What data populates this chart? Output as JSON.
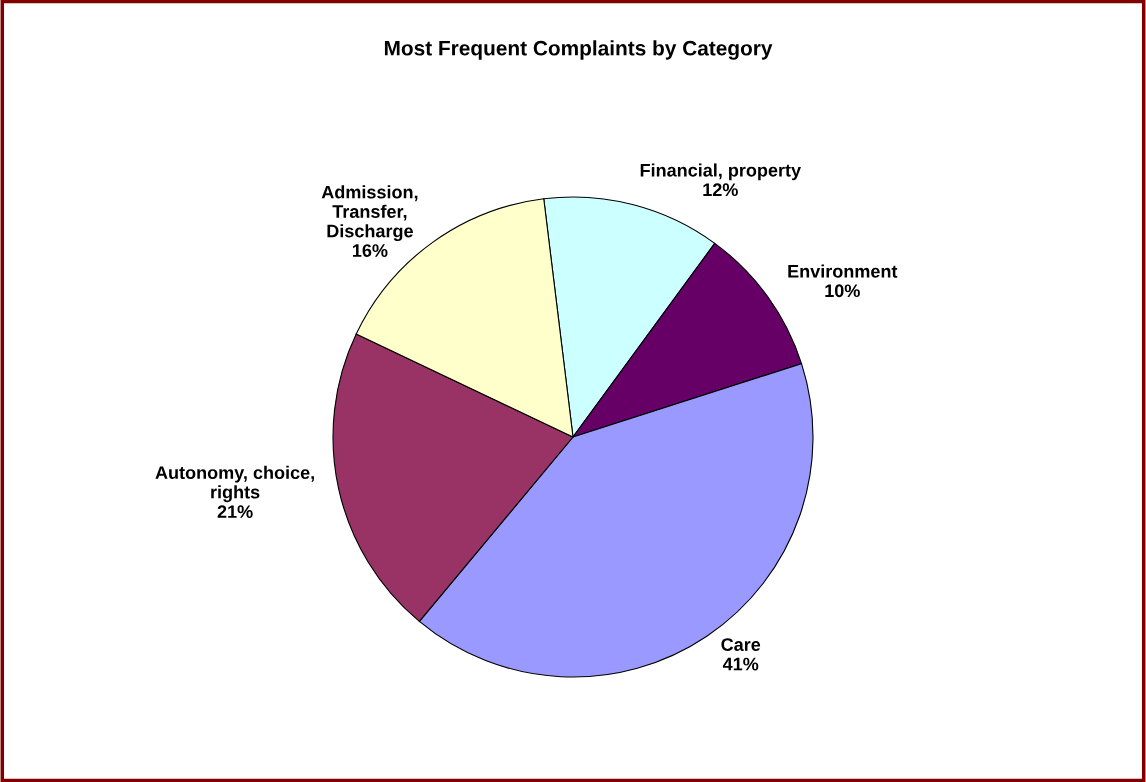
{
  "chart_data": {
    "type": "pie",
    "title": "Most Frequent Complaints by Category",
    "categories": [
      "Financial, property",
      "Environment",
      "Care",
      "Autonomy, choice,\nrights",
      "Admission,\nTransfer,\nDischarge"
    ],
    "values": [
      12,
      10,
      41,
      21,
      16
    ],
    "colors": [
      "#ccffff",
      "#660066",
      "#9999ff",
      "#993366",
      "#ffffcc"
    ],
    "value_labels": [
      "12%",
      "10%",
      "41%",
      "21%",
      "16%"
    ],
    "legend": false
  }
}
